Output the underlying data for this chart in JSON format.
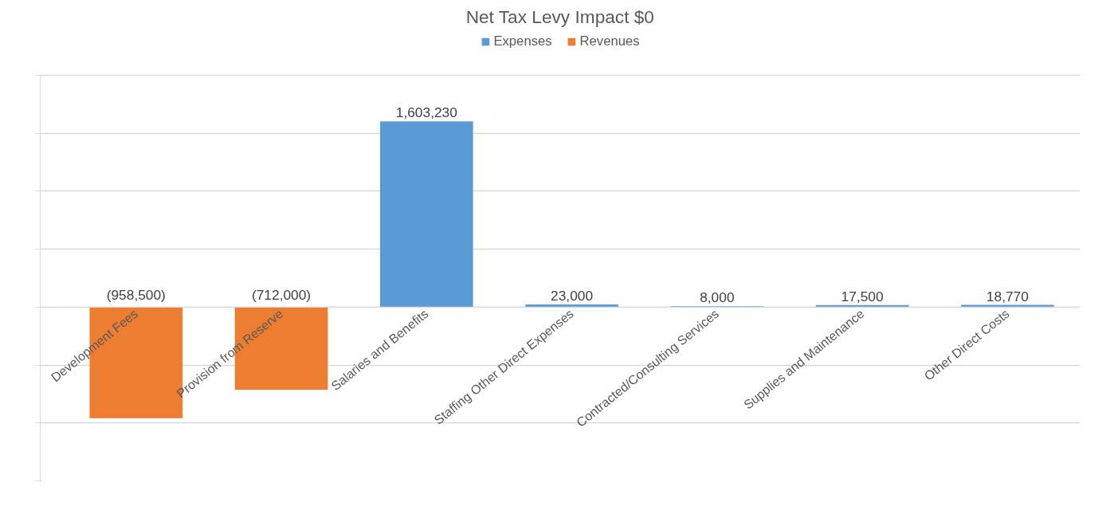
{
  "chart_data": {
    "type": "bar",
    "title": "Net Tax Levy Impact $0",
    "categories": [
      "Development Fees",
      "Provision from Reserve",
      "Salaries and Benefits",
      "Staffing Other Direct Expenses",
      "Contracted/Consulting Services",
      "Supplies and Maintenance",
      "Other Direct Costs"
    ],
    "series": [
      {
        "name": "Expenses",
        "color": "#5b9bd5",
        "values": [
          null,
          null,
          1603230,
          23000,
          8000,
          17500,
          18770
        ],
        "value_labels": [
          null,
          null,
          "1,603,230",
          "23,000",
          "8,000",
          "17,500",
          "18,770"
        ]
      },
      {
        "name": "Revenues",
        "color": "#ed7d31",
        "values": [
          -958500,
          -712000,
          null,
          null,
          null,
          null,
          null
        ],
        "value_labels": [
          "(958,500)",
          "(712,000)",
          null,
          null,
          null,
          null,
          null
        ]
      }
    ],
    "ylim": [
      -1500000,
      2000000
    ],
    "yticks": [
      {
        "value": -1500000,
        "label": null
      },
      {
        "value": -1000000,
        "label": null
      },
      {
        "value": -500000,
        "label": null
      },
      {
        "value": 0,
        "label": null
      },
      {
        "value": 500000,
        "label": null
      },
      {
        "value": 1000000,
        "label": null
      },
      {
        "value": 1500000,
        "label": null
      },
      {
        "value": 2000000,
        "label": null
      }
    ],
    "grid": "y",
    "legend": "top",
    "tick_labels": "x"
  }
}
